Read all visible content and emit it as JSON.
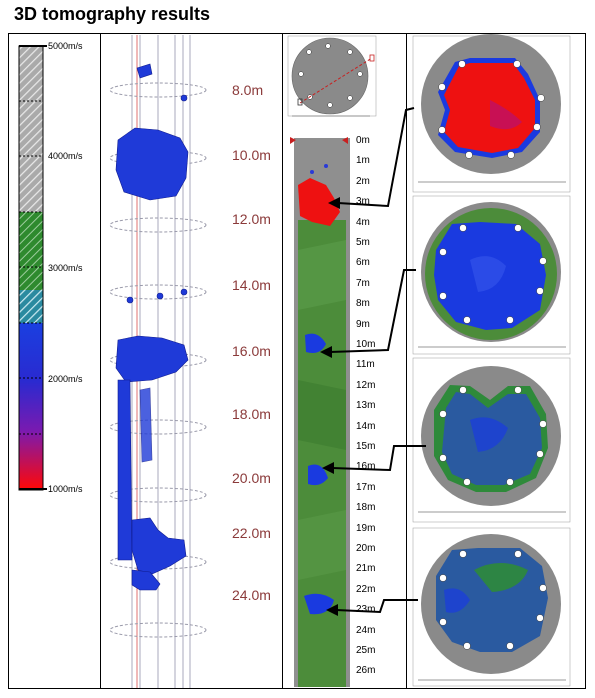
{
  "title": "3D tomography results",
  "velocity_scale": {
    "labels": [
      "5000m/s",
      "4000m/s",
      "3000m/s",
      "2000m/s",
      "1000m/s"
    ]
  },
  "elevation_labels": [
    "8.0m",
    "10.0m",
    "12.0m",
    "14.0m",
    "16.0m",
    "18.0m",
    "20.0m",
    "22.0m",
    "24.0m"
  ],
  "depth_labels": [
    "0m",
    "1m",
    "2m",
    "3m",
    "4m",
    "5m",
    "6m",
    "7m",
    "8m",
    "9m",
    "10m",
    "11m",
    "12m",
    "13m",
    "14m",
    "15m",
    "16m",
    "17m",
    "18m",
    "19m",
    "20m",
    "21m",
    "22m",
    "23m",
    "24m",
    "25m",
    "26m"
  ],
  "colors": {
    "high_velocity": "#ee1111",
    "low_velocity": "#1a2ee0",
    "mid_velocity": "#2e8a2e",
    "background_gray": "#8a8a8a",
    "label_red": "#8b3a3a"
  }
}
